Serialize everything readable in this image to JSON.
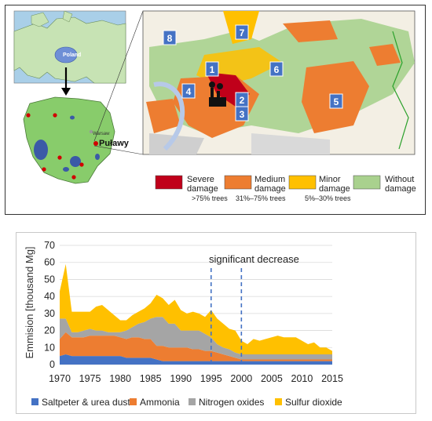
{
  "map": {
    "region_country_label": "Poland",
    "city_label": "Puławy",
    "capital_label": "Warsaw",
    "zone_numbers": [
      "1",
      "2",
      "3",
      "4",
      "5",
      "6",
      "7",
      "8"
    ],
    "legend": [
      {
        "title_line1": "Severe",
        "title_line2": "damage",
        "range": ">75% trees",
        "color": "#c0001a"
      },
      {
        "title_line1": "Medium",
        "title_line2": "damage",
        "range": "31%–75% trees",
        "color": "#ed7d31"
      },
      {
        "title_line1": "Minor",
        "title_line2": "damage",
        "range": "5%–30% trees",
        "color": "#ffc000"
      },
      {
        "title_line1": "Without",
        "title_line2": "damage",
        "range": "",
        "color": "#a9d18e"
      }
    ]
  },
  "chart_data": {
    "type": "area",
    "stacked": true,
    "ylabel": "Emmision [thousand Mg]",
    "xlabel": "",
    "xlim": [
      1970,
      2015
    ],
    "ylim": [
      0,
      70
    ],
    "x_ticks": [
      "1970",
      "1975",
      "1980",
      "1985",
      "1990",
      "1995",
      "2000",
      "2005",
      "2010",
      "2015"
    ],
    "y_ticks": [
      "0",
      "10",
      "20",
      "30",
      "40",
      "50",
      "60",
      "70"
    ],
    "annotation": "significant decrease",
    "vlines": [
      1995,
      2000
    ],
    "x": [
      1970,
      1971,
      1972,
      1973,
      1974,
      1975,
      1976,
      1977,
      1978,
      1979,
      1980,
      1981,
      1982,
      1983,
      1984,
      1985,
      1986,
      1987,
      1988,
      1989,
      1990,
      1991,
      1992,
      1993,
      1994,
      1995,
      1996,
      1997,
      1998,
      1999,
      2000,
      2001,
      2002,
      2003,
      2004,
      2005,
      2006,
      2007,
      2008,
      2009,
      2010,
      2011,
      2012,
      2013,
      2014,
      2015
    ],
    "series": [
      {
        "name": "Saltpeter & urea dust",
        "color": "#4472c4",
        "values": [
          5,
          6,
          5,
          5,
          5,
          5,
          5,
          5,
          5,
          5,
          5,
          4,
          4,
          4,
          4,
          4,
          3,
          2,
          2,
          2,
          2,
          2,
          2,
          2,
          2,
          2,
          2,
          2,
          2,
          2,
          2,
          2,
          2,
          2,
          2,
          2,
          2,
          2,
          2,
          2,
          2,
          2,
          2,
          2,
          2,
          2
        ]
      },
      {
        "name": "Ammonia",
        "color": "#ed7d31",
        "values": [
          10,
          13,
          11,
          11,
          11,
          12,
          12,
          12,
          12,
          12,
          11,
          11,
          12,
          12,
          11,
          11,
          8,
          9,
          8,
          8,
          8,
          8,
          7,
          7,
          6,
          6,
          5,
          4,
          3,
          2,
          1,
          1,
          1,
          1,
          1,
          1,
          1,
          1,
          1,
          1,
          1,
          1,
          1,
          1,
          1,
          1
        ]
      },
      {
        "name": "Nitrogen oxides",
        "color": "#a5a5a5",
        "values": [
          12,
          8,
          3,
          3,
          4,
          4,
          3,
          3,
          2,
          2,
          3,
          5,
          6,
          8,
          10,
          12,
          17,
          17,
          14,
          14,
          10,
          10,
          11,
          11,
          10,
          8,
          5,
          4,
          4,
          3,
          3,
          3,
          3,
          3,
          3,
          3,
          3,
          3,
          3,
          3,
          3,
          3,
          3,
          3,
          3,
          3
        ]
      },
      {
        "name": "Sulfur dioxide",
        "color": "#ffc000",
        "values": [
          16,
          32,
          12,
          12,
          11,
          10,
          14,
          15,
          13,
          10,
          7,
          6,
          7,
          7,
          8,
          9,
          13,
          11,
          11,
          14,
          12,
          10,
          11,
          10,
          10,
          16,
          15,
          14,
          12,
          13,
          8,
          6,
          9,
          8,
          9,
          10,
          11,
          10,
          10,
          10,
          8,
          6,
          7,
          4,
          4,
          2
        ]
      }
    ]
  }
}
